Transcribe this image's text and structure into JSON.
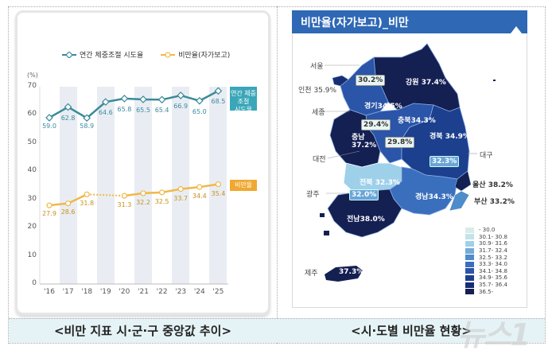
{
  "left_panel": {
    "caption": "<비만 지표 시·군·구 중앙값 추이>",
    "legend": [
      {
        "label": "연간 체중조절 시도율",
        "color": "#3a8a98"
      },
      {
        "label": "비만율(자가보고)",
        "color": "#f0b848"
      }
    ],
    "unit": "(%)",
    "tags": {
      "weight_control": "연간 체중조절\n시도율",
      "obesity": "비만율"
    }
  },
  "chart_data": {
    "type": "line",
    "title": "비만 지표 시·군·구 중앙값 추이",
    "xlabel": "",
    "ylabel": "(%)",
    "ylim": [
      0,
      70
    ],
    "y_ticks": [
      0,
      10,
      20,
      30,
      40,
      50,
      60,
      70
    ],
    "categories": [
      "'16",
      "'17",
      "'18",
      "'19",
      "'20",
      "'21",
      "'22",
      "'23",
      "'24",
      "'25"
    ],
    "series": [
      {
        "name": "연간 체중조절 시도율",
        "color": "#3a8a98",
        "values": [
          59.0,
          62.8,
          58.9,
          64.6,
          65.8,
          65.5,
          65.4,
          66.9,
          65.0,
          68.5
        ]
      },
      {
        "name": "비만율(자가보고)",
        "color": "#f0b848",
        "values": [
          27.9,
          28.6,
          31.8,
          null,
          31.3,
          32.2,
          32.5,
          33.7,
          34.4,
          35.4
        ],
        "note": "'18–'20 dotted (no '19 data)"
      }
    ],
    "value_labels": {
      "weight_control": [
        "59.0",
        "62.8",
        "58.9",
        "64.6",
        "65.8",
        "65.5",
        "65.4",
        "66.9",
        "65.0",
        "68.5"
      ],
      "obesity": [
        "27.9",
        "28.6",
        "31.8",
        "",
        "31.3",
        "32.2",
        "32.5",
        "33.7",
        "34.4",
        "35.4"
      ]
    },
    "legend_position": "top",
    "grid": false
  },
  "right_panel": {
    "title": "비만율(자가보고)_비만",
    "caption": "<시·도별 비만율 현황>",
    "regions": [
      {
        "name": "강원",
        "value": "37.4%"
      },
      {
        "name": "경기",
        "value": "34.5%"
      },
      {
        "name": "충북",
        "value": "34.3%"
      },
      {
        "name": "충남",
        "value": "37.2%"
      },
      {
        "name": "경북",
        "value": "34.9%"
      },
      {
        "name": "전북",
        "value": "32.3%"
      },
      {
        "name": "경남",
        "value": "34.3%"
      },
      {
        "name": "전남",
        "value": "38.0%"
      },
      {
        "name": "제주",
        "value": "37.3%"
      }
    ],
    "cities": {
      "seoul": {
        "name": "서울",
        "value": "30.2%"
      },
      "incheon": {
        "name": "인천",
        "value": "35.9%"
      },
      "sejong": {
        "name": "세종",
        "value": "29.4%"
      },
      "daejeon": {
        "name": "대전",
        "value": "29.8%"
      },
      "daegu": {
        "name": "대구",
        "value": "32.3%"
      },
      "ulsan": {
        "name": "울산",
        "value": "38.2%"
      },
      "busan": {
        "name": "부산",
        "value": "33.2%"
      },
      "gwangju": {
        "name": "광주",
        "value": "32.0%"
      }
    },
    "legend": [
      {
        "label": "- 30.0",
        "color": "#d8ece8"
      },
      {
        "label": "30.1- 30.8",
        "color": "#c4e2ea"
      },
      {
        "label": "30.9- 31.6",
        "color": "#9fd0ea"
      },
      {
        "label": "31.7- 32.4",
        "color": "#72acd9"
      },
      {
        "label": "32.5- 33.2",
        "color": "#4f8cca"
      },
      {
        "label": "33.3- 34.0",
        "color": "#3a6fbd"
      },
      {
        "label": "34.1- 34.8",
        "color": "#2a55a8"
      },
      {
        "label": "34.9- 35.6",
        "color": "#1c3f8e"
      },
      {
        "label": "35.7- 36.4",
        "color": "#172f72"
      },
      {
        "label": "36.5-",
        "color": "#141f52"
      }
    ]
  },
  "watermark": "뉴스1"
}
